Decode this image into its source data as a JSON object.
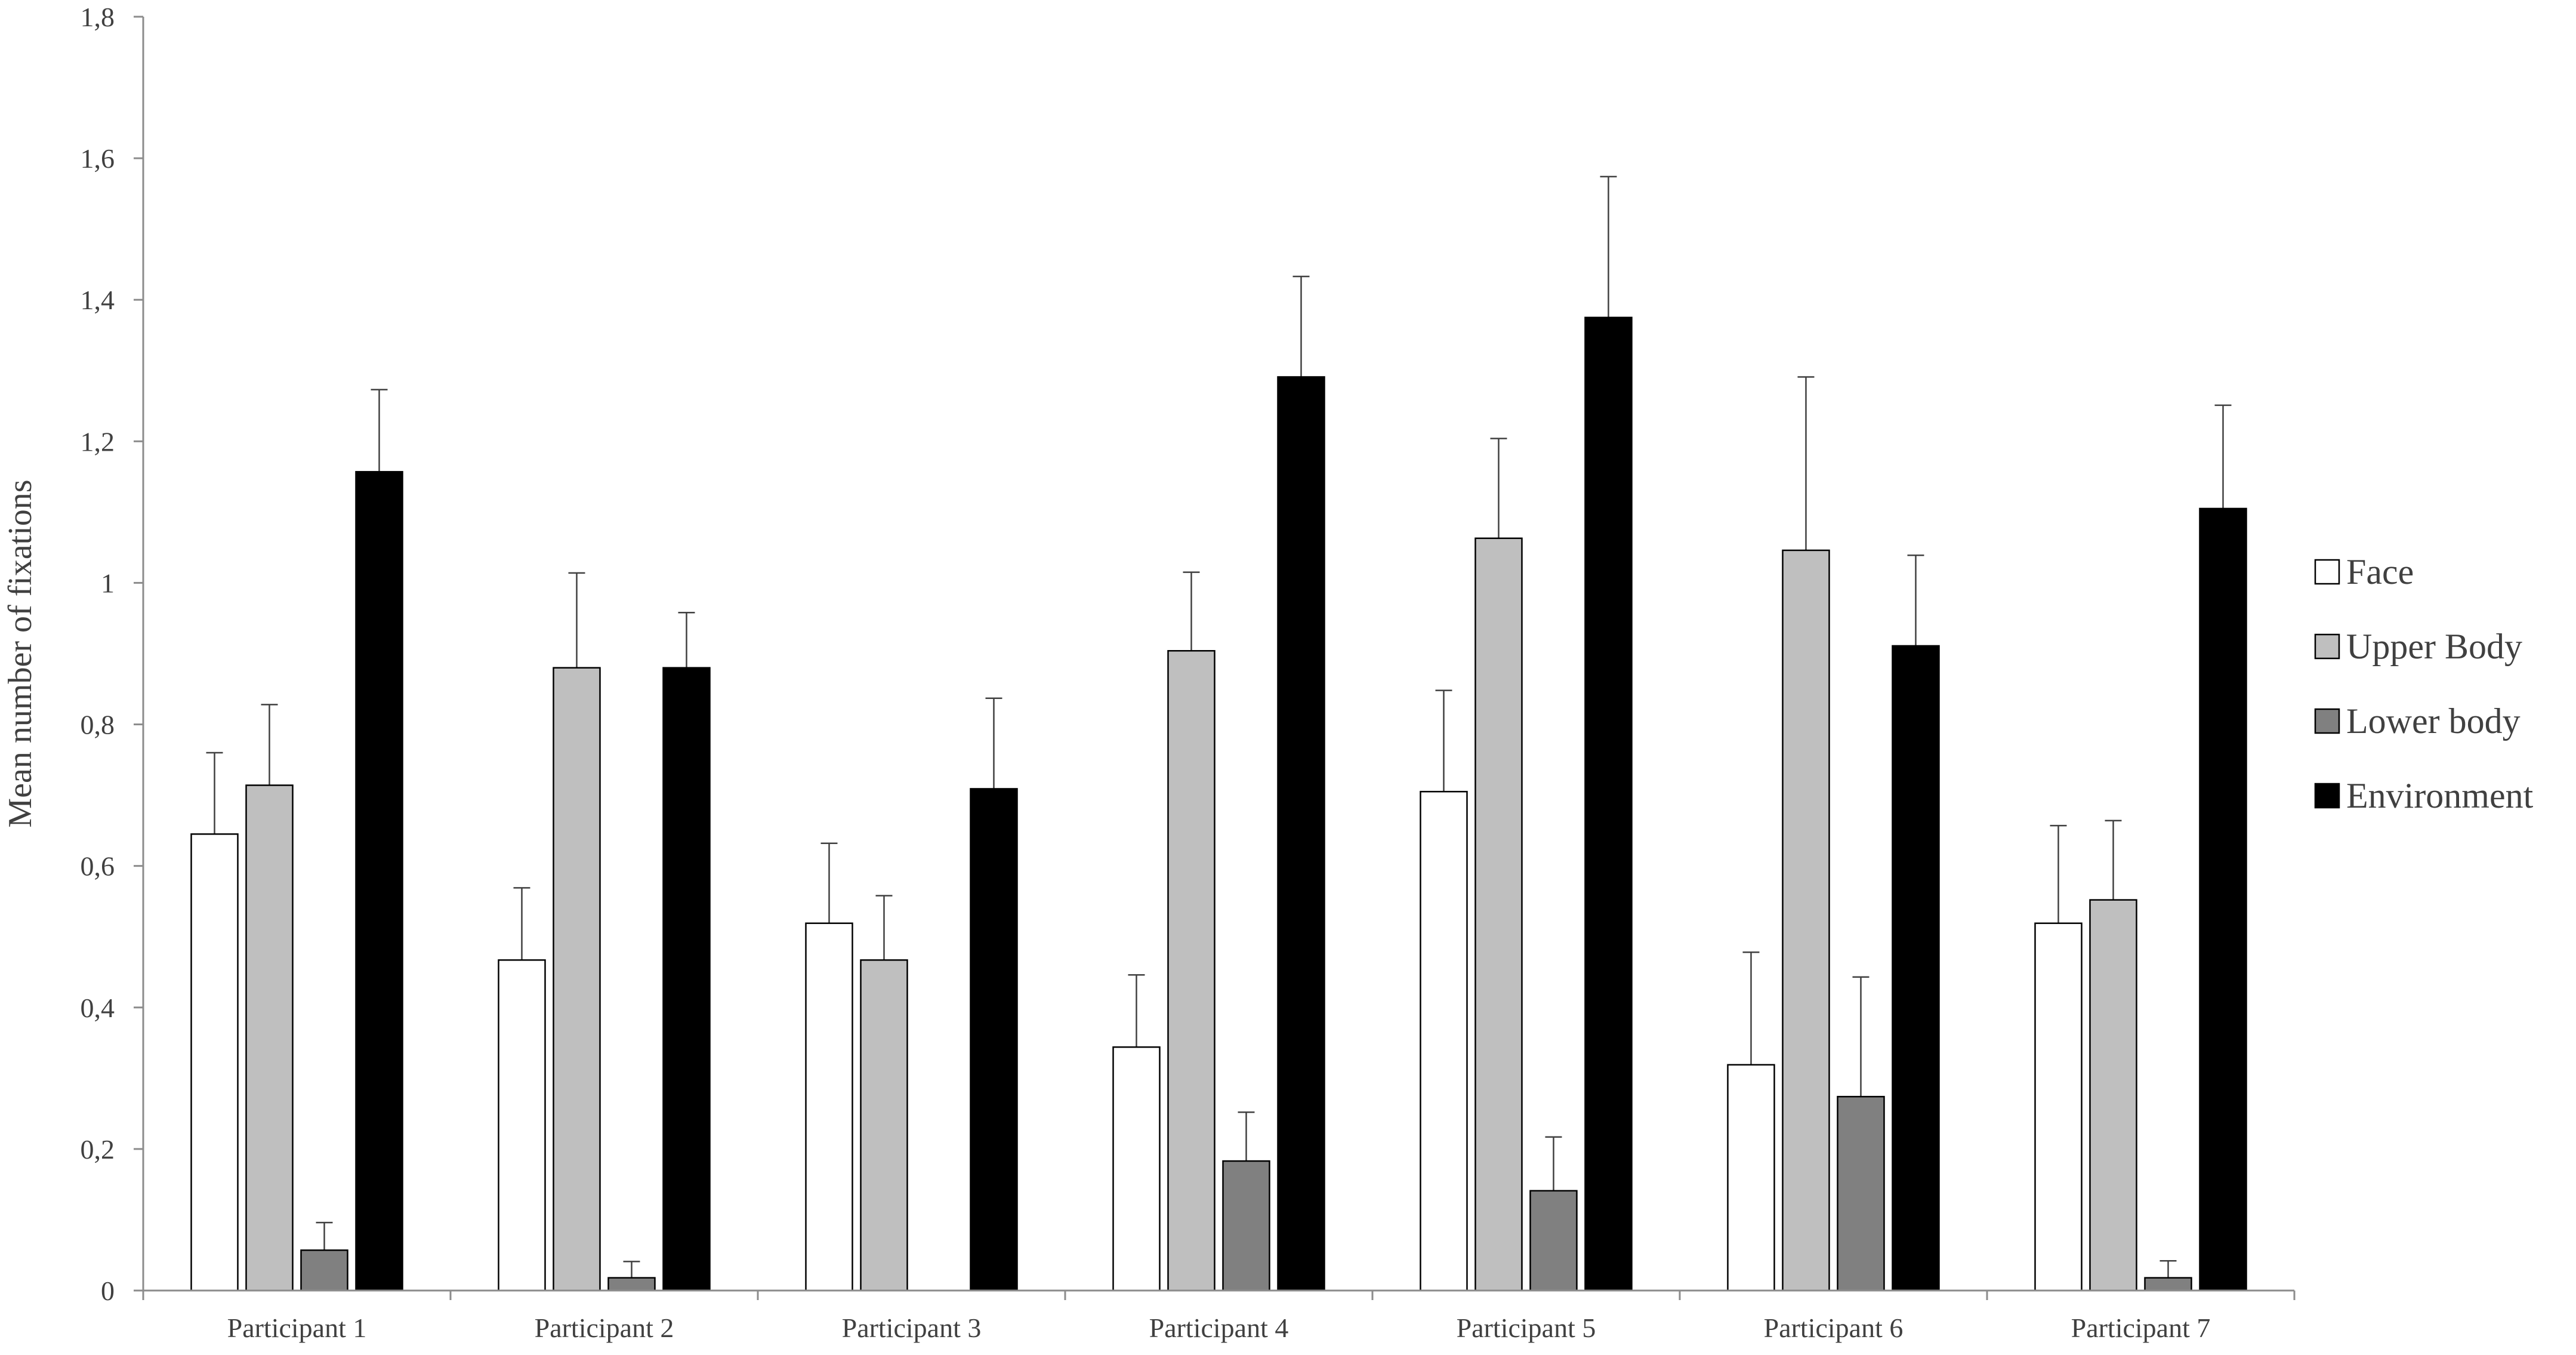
{
  "chart_data": {
    "type": "bar",
    "title": "",
    "xlabel": "",
    "ylabel": "Mean number of fixations",
    "ylim": [
      0,
      1.8
    ],
    "yticks": [
      0,
      0.2,
      0.4,
      0.6,
      0.8,
      1,
      1.2,
      1.4,
      1.6,
      1.8
    ],
    "ytick_labels": [
      "0",
      "0,2",
      "0,4",
      "0,6",
      "0,8",
      "1",
      "1,2",
      "1,4",
      "1,6",
      "1,8"
    ],
    "categories": [
      "Participant 1",
      "Participant 2",
      "Participant 3",
      "Participant 4",
      "Participant 5",
      "Participant 6",
      "Participant 7"
    ],
    "grid": false,
    "legend_position": "right",
    "error_bars": "upper",
    "series": [
      {
        "name": "Face",
        "color": "#ffffff",
        "values": [
          0.645,
          0.467,
          0.519,
          0.344,
          0.705,
          0.319,
          0.519
        ],
        "errors": [
          0.115,
          0.102,
          0.113,
          0.102,
          0.143,
          0.159,
          0.138
        ]
      },
      {
        "name": "Upper Body",
        "color": "#bfbfbf",
        "values": [
          0.714,
          0.88,
          0.467,
          0.904,
          1.063,
          1.046,
          0.552
        ],
        "errors": [
          0.114,
          0.134,
          0.091,
          0.111,
          0.141,
          0.245,
          0.112
        ]
      },
      {
        "name": "Lower body",
        "color": "#808080",
        "values": [
          0.057,
          0.018,
          0,
          0.183,
          0.141,
          0.274,
          0.018
        ],
        "errors": [
          0.039,
          0.023,
          0,
          0.069,
          0.076,
          0.169,
          0.024
        ]
      },
      {
        "name": "Environment",
        "color": "#000000",
        "values": [
          1.157,
          0.88,
          0.709,
          1.291,
          1.375,
          0.911,
          1.105
        ],
        "errors": [
          0.116,
          0.078,
          0.128,
          0.142,
          0.199,
          0.128,
          0.146
        ]
      }
    ]
  }
}
